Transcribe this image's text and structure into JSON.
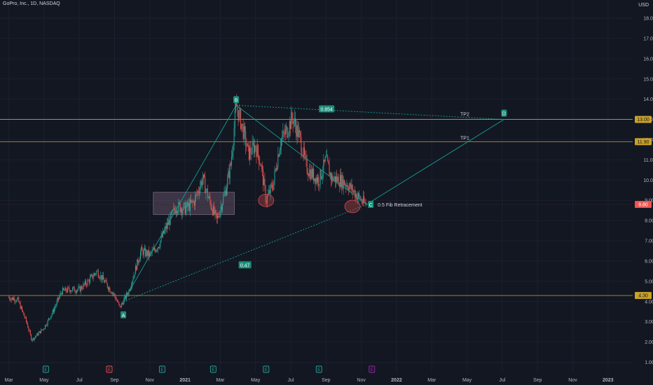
{
  "header": {
    "symbol": "GoPro, Inc., 1D, NASDAQ",
    "currency": "USD"
  },
  "colors": {
    "background": "#131722",
    "up": "#26a69a",
    "down": "#ef5350",
    "level": "#c9a227",
    "pattern": "#139e8e",
    "label_bg": "#1a8f7a",
    "price_tag": "#ef5350",
    "level_tag": "#c9a227",
    "zone": "#6e5a72",
    "circle": "#d24b4b"
  },
  "chart_data": {
    "type": "candlestick",
    "y_axis": {
      "ticks": [
        1,
        2,
        3,
        4,
        5,
        6,
        7,
        8,
        9,
        10,
        11,
        12,
        13,
        14,
        15,
        16,
        17,
        18
      ],
      "tick_labels": [
        "1.00",
        "2.00",
        "3.00",
        "4.00",
        "5.00",
        "6.00",
        "7.00",
        "8.00",
        "9.00",
        "10.00",
        "11.00",
        "12.00",
        "13.00",
        "14.00",
        "15.00",
        "16.00",
        "17.00",
        "18.00"
      ],
      "range": [
        0.5,
        18.9
      ]
    },
    "x_axis": {
      "labels": [
        "Mar",
        "May",
        "Jul",
        "Sep",
        "Nov",
        "2021",
        "Mar",
        "May",
        "Jul",
        "Sep",
        "Nov",
        "2022",
        "Mar",
        "May",
        "Jul",
        "Sep",
        "Nov",
        "2023"
      ],
      "months_from_start": [
        0,
        2,
        4,
        6,
        8,
        10,
        12,
        14,
        16,
        18,
        20,
        22,
        24,
        26,
        28,
        30,
        32,
        34
      ],
      "range": [
        -0.5,
        35.4
      ]
    },
    "price_path": [
      [
        0,
        4.2
      ],
      [
        0.5,
        4.1
      ],
      [
        1,
        3.0
      ],
      [
        1.3,
        2.1
      ],
      [
        2,
        2.7
      ],
      [
        2.5,
        3.5
      ],
      [
        3,
        4.5
      ],
      [
        3.5,
        4.6
      ],
      [
        4,
        4.6
      ],
      [
        4.5,
        5.0
      ],
      [
        5,
        5.5
      ],
      [
        5.5,
        4.9
      ],
      [
        6,
        4.3
      ],
      [
        6.3,
        3.7
      ],
      [
        6.8,
        4.5
      ],
      [
        7.5,
        6.5
      ],
      [
        8,
        6.3
      ],
      [
        8.5,
        6.8
      ],
      [
        9,
        7.8
      ],
      [
        9.5,
        8.7
      ],
      [
        10,
        8.6
      ],
      [
        10.5,
        8.9
      ],
      [
        11,
        10.1
      ],
      [
        11.3,
        9.2
      ],
      [
        11.8,
        8.0
      ],
      [
        12.3,
        9.5
      ],
      [
        12.6,
        10.8
      ],
      [
        12.9,
        13.7
      ],
      [
        13.2,
        12.8
      ],
      [
        13.6,
        11.3
      ],
      [
        14,
        11.7
      ],
      [
        14.3,
        10.8
      ],
      [
        14.6,
        9.0
      ],
      [
        15,
        9.8
      ],
      [
        15.4,
        11.9
      ],
      [
        15.8,
        12.5
      ],
      [
        16.1,
        13.1
      ],
      [
        16.5,
        12.1
      ],
      [
        16.9,
        10.6
      ],
      [
        17.3,
        10.2
      ],
      [
        17.6,
        10.0
      ],
      [
        18,
        11.0
      ],
      [
        18.3,
        10.1
      ],
      [
        18.8,
        10.0
      ],
      [
        19.2,
        9.8
      ],
      [
        19.7,
        9.3
      ],
      [
        20.1,
        8.9
      ],
      [
        20.3,
        8.8
      ]
    ],
    "levels": [
      {
        "price": 13.0,
        "label": "13.00",
        "name": "TP2"
      },
      {
        "price": 11.9,
        "label": "11.90",
        "name": "TP1"
      },
      {
        "price": 4.3,
        "label": "4.30",
        "name": ""
      }
    ],
    "current_price": {
      "price": 8.8,
      "label": "8.80"
    },
    "pattern": {
      "points": [
        {
          "name": "A",
          "x": 6.5,
          "price": 4.0
        },
        {
          "name": "B",
          "x": 12.9,
          "price": 13.7
        },
        {
          "name": "C",
          "x": 20.3,
          "price": 8.8
        },
        {
          "name": "D",
          "x": 28.1,
          "price": 13.0
        }
      ],
      "ratio_bc": "0.854",
      "ratio_ac": "0.47"
    },
    "annotations": {
      "fib_text": "0.5 Fib Retracement",
      "tp1": "TP1",
      "tp2": "TP2"
    },
    "zone": {
      "x_start": 8.2,
      "x_end": 12.8,
      "price_low": 8.3,
      "price_high": 9.4
    },
    "circles": [
      {
        "x": 14.6,
        "price": 9.0
      },
      {
        "x": 19.5,
        "price": 8.7
      }
    ],
    "events": [
      {
        "x": 2.1,
        "letter": "E",
        "kind": "earnings"
      },
      {
        "x": 5.7,
        "letter": "E",
        "kind": "earnings-miss"
      },
      {
        "x": 8.7,
        "letter": "E",
        "kind": "earnings"
      },
      {
        "x": 11.6,
        "letter": "E",
        "kind": "earnings"
      },
      {
        "x": 14.6,
        "letter": "E",
        "kind": "earnings"
      },
      {
        "x": 17.6,
        "letter": "E",
        "kind": "earnings"
      },
      {
        "x": 20.6,
        "letter": "E",
        "kind": "upcoming"
      }
    ]
  }
}
